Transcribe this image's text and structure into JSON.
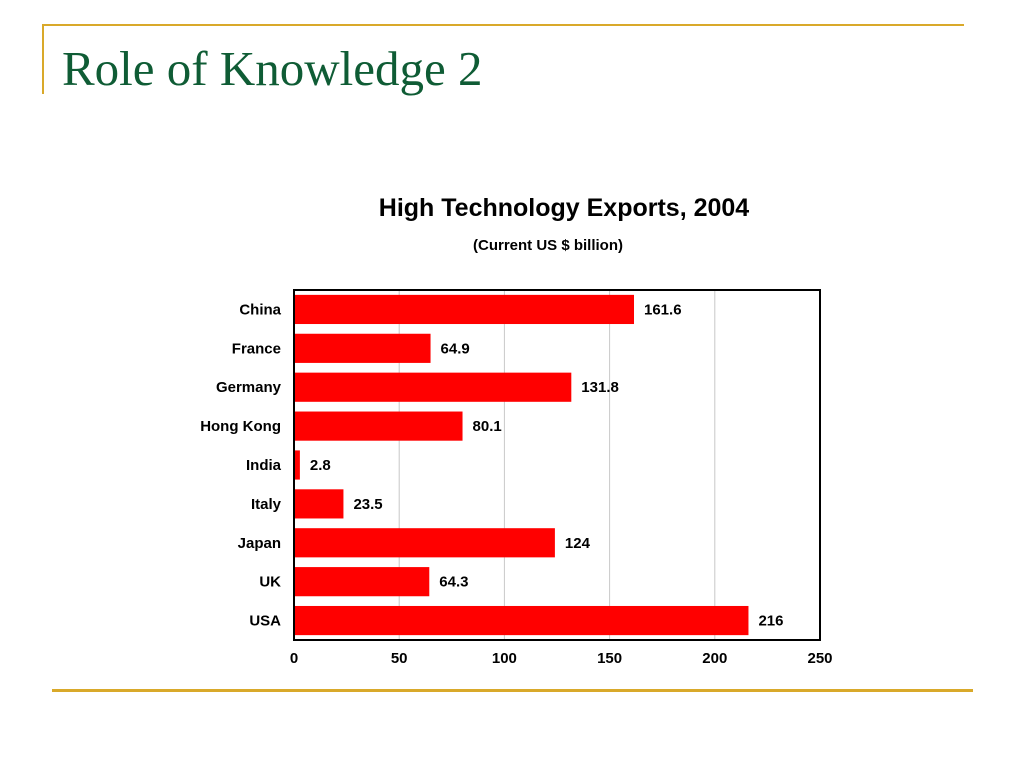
{
  "slide": {
    "title": "Role of Knowledge 2",
    "title_color": "#0f5c35",
    "accent_color": "#d9a92a"
  },
  "chart_data": {
    "type": "bar",
    "orientation": "horizontal",
    "title": "High Technology Exports, 2004",
    "subtitle": "(Current US $ billion)",
    "categories": [
      "China",
      "France",
      "Germany",
      "Hong Kong",
      "India",
      "Italy",
      "Japan",
      "UK",
      "USA"
    ],
    "values": [
      161.6,
      64.9,
      131.8,
      80.1,
      2.8,
      23.5,
      124,
      64.3,
      216
    ],
    "value_labels": [
      "161.6",
      "64.9",
      "131.8",
      "80.1",
      "2.8",
      "23.5",
      "124",
      "64.3",
      "216"
    ],
    "xlim": [
      0,
      250
    ],
    "xticks": [
      0,
      50,
      100,
      150,
      200,
      250
    ],
    "grid": true,
    "legend": "none",
    "bar_color": "#ff0000",
    "grid_color": "#c8c8c8"
  }
}
